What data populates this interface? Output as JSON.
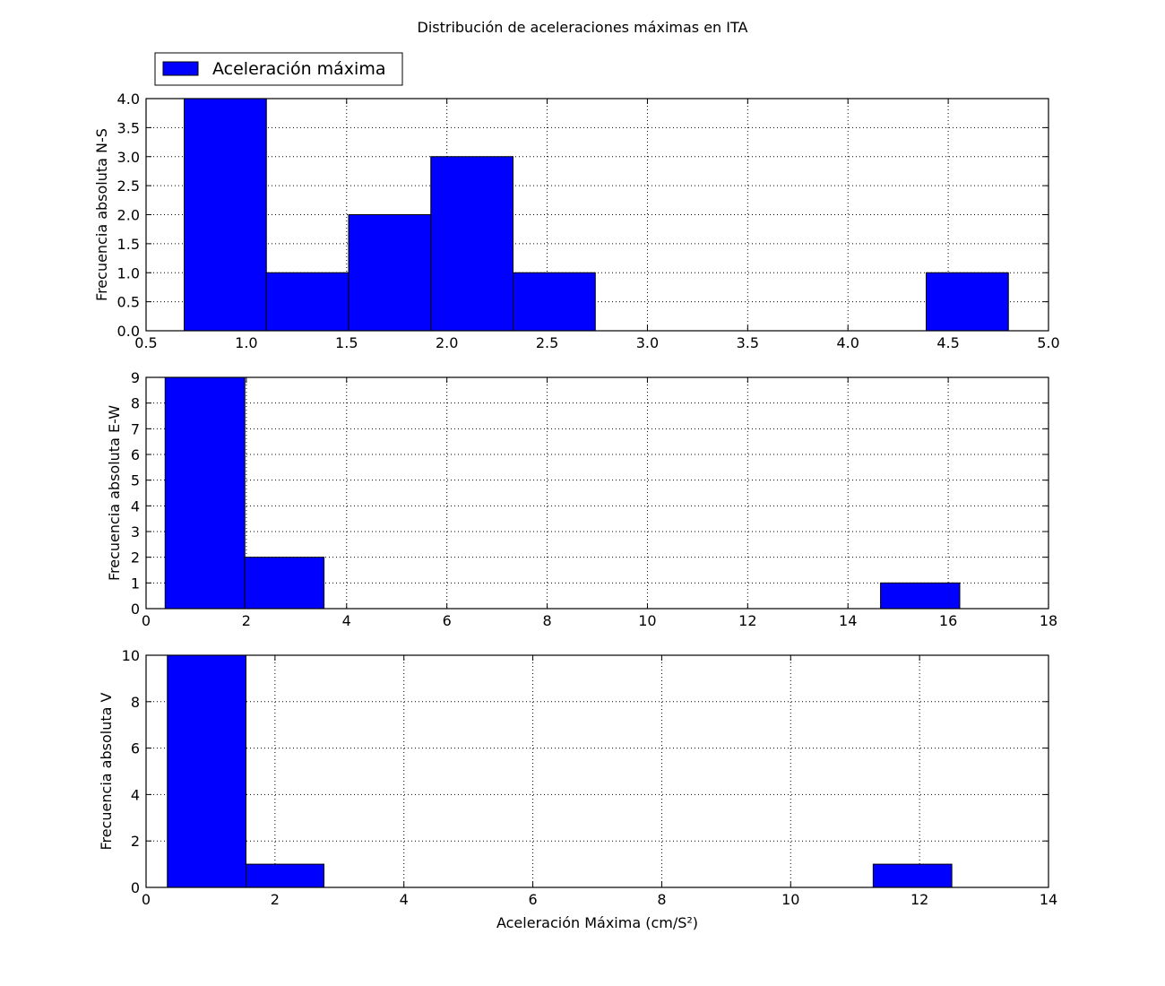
{
  "title": "Distribución de aceleraciones máximas en ITA",
  "legend": {
    "label": "Aceleración máxima",
    "placement": "top-left, above first panel"
  },
  "bar_color": "#0000ff",
  "chart_data": [
    {
      "type": "bar",
      "variant": "histogram",
      "ylabel": "Frecuencia absoluta N-S",
      "xlabel": "",
      "xlim": [
        0.5,
        5.0
      ],
      "ylim": [
        0,
        4.0
      ],
      "grid": true,
      "xticks": [
        "0.5",
        "1.0",
        "1.5",
        "2.0",
        "2.5",
        "3.0",
        "3.5",
        "4.0",
        "4.5",
        "5.0"
      ],
      "yticks": [
        "0.0",
        "0.5",
        "1.0",
        "1.5",
        "2.0",
        "2.5",
        "3.0",
        "3.5",
        "4.0"
      ],
      "bins": [
        {
          "x0": 0.69,
          "x1": 1.1,
          "count": 4
        },
        {
          "x0": 1.1,
          "x1": 1.51,
          "count": 1
        },
        {
          "x0": 1.51,
          "x1": 1.92,
          "count": 2
        },
        {
          "x0": 1.92,
          "x1": 2.33,
          "count": 3
        },
        {
          "x0": 2.33,
          "x1": 2.74,
          "count": 1
        },
        {
          "x0": 4.39,
          "x1": 4.8,
          "count": 1
        }
      ]
    },
    {
      "type": "bar",
      "variant": "histogram",
      "ylabel": "Frecuencia absoluta E-W",
      "xlabel": "",
      "xlim": [
        0,
        18
      ],
      "ylim": [
        0,
        9
      ],
      "grid": true,
      "xticks": [
        "0",
        "2",
        "4",
        "6",
        "8",
        "10",
        "12",
        "14",
        "16",
        "18"
      ],
      "yticks": [
        "0",
        "1",
        "2",
        "3",
        "4",
        "5",
        "6",
        "7",
        "8",
        "9"
      ],
      "bins": [
        {
          "x0": 0.38,
          "x1": 1.97,
          "count": 9
        },
        {
          "x0": 1.97,
          "x1": 3.55,
          "count": 2
        },
        {
          "x0": 14.65,
          "x1": 16.23,
          "count": 1
        }
      ]
    },
    {
      "type": "bar",
      "variant": "histogram",
      "ylabel": "Frecuencia absoluta V",
      "xlabel": "Aceleración Máxima (cm/S²)",
      "xlim": [
        0,
        14
      ],
      "ylim": [
        0,
        10
      ],
      "grid": true,
      "xticks": [
        "0",
        "2",
        "4",
        "6",
        "8",
        "10",
        "12",
        "14"
      ],
      "yticks": [
        "0",
        "2",
        "4",
        "6",
        "8",
        "10"
      ],
      "bins": [
        {
          "x0": 0.33,
          "x1": 1.55,
          "count": 10
        },
        {
          "x0": 1.55,
          "x1": 2.76,
          "count": 1
        },
        {
          "x0": 11.28,
          "x1": 12.5,
          "count": 1
        }
      ]
    }
  ]
}
